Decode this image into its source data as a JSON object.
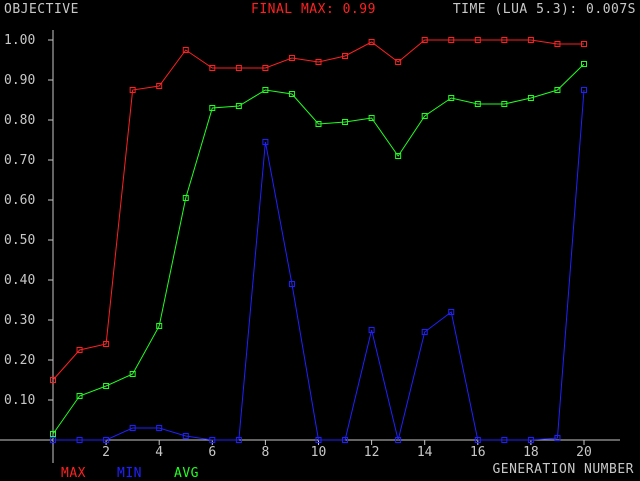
{
  "header": {
    "objective_label": "OBJECTIVE",
    "final_max": "FINAL MAX: 0.99",
    "time": "TIME (LUA 5.3): 0.007S"
  },
  "chart_data": {
    "type": "line",
    "xlabel": "GENERATION NUMBER",
    "ylabel": "OBJECTIVE",
    "xlim": [
      0,
      20
    ],
    "ylim": [
      0,
      1.0
    ],
    "x_ticks": [
      2,
      4,
      6,
      8,
      10,
      12,
      14,
      16,
      18,
      20
    ],
    "y_ticks": [
      "0.10",
      "0.20",
      "0.30",
      "0.40",
      "0.50",
      "0.60",
      "0.70",
      "0.80",
      "0.90",
      "1.00"
    ],
    "x": [
      0,
      1,
      2,
      3,
      4,
      5,
      6,
      7,
      8,
      9,
      10,
      11,
      12,
      13,
      14,
      15,
      16,
      17,
      18,
      19,
      20
    ],
    "legend_placement": "bottom-left",
    "grid": false,
    "series": [
      {
        "name": "MAX",
        "color": "#ff2020",
        "values": [
          0.15,
          0.225,
          0.24,
          0.875,
          0.885,
          0.975,
          0.93,
          0.93,
          0.93,
          0.955,
          0.945,
          0.96,
          0.995,
          0.945,
          1.0,
          1.0,
          1.0,
          1.0,
          1.0,
          0.99,
          0.99
        ]
      },
      {
        "name": "MIN",
        "color": "#2020ff",
        "values": [
          0.0,
          0.0,
          0.0,
          0.03,
          0.03,
          0.01,
          0.0,
          0.0,
          0.745,
          0.39,
          0.0,
          0.0,
          0.275,
          0.0,
          0.27,
          0.32,
          0.0,
          0.0,
          0.0,
          0.005,
          0.875
        ]
      },
      {
        "name": "AVG",
        "color": "#20ff20",
        "values": [
          0.015,
          0.11,
          0.135,
          0.165,
          0.285,
          0.605,
          0.83,
          0.835,
          0.875,
          0.865,
          0.79,
          0.795,
          0.805,
          0.71,
          0.81,
          0.855,
          0.84,
          0.84,
          0.855,
          0.875,
          0.94
        ]
      }
    ]
  }
}
